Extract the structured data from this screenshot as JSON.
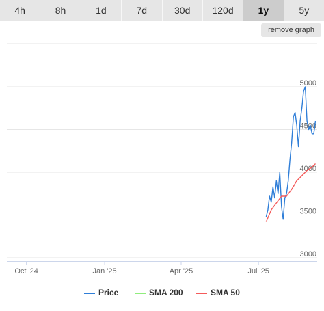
{
  "tabs": [
    {
      "label": "4h",
      "active": false
    },
    {
      "label": "8h",
      "active": false
    },
    {
      "label": "1d",
      "active": false
    },
    {
      "label": "7d",
      "active": false
    },
    {
      "label": "30d",
      "active": false
    },
    {
      "label": "120d",
      "active": false
    },
    {
      "label": "1y",
      "active": true
    },
    {
      "label": "5y",
      "active": false
    }
  ],
  "remove_graph_label": "remove graph",
  "chart_data": {
    "type": "line",
    "x_tick_labels": [
      "Oct '24",
      "Jan '25",
      "Apr '25",
      "Jul '25"
    ],
    "x_ticks": [
      "2024-10-01",
      "2025-01-01",
      "2025-04-01",
      "2025-07-01"
    ],
    "xlim": [
      "2024-09-08",
      "2025-09-08"
    ],
    "y_tick_labels": [
      "3000",
      "3500",
      "4000",
      "4500",
      "5000"
    ],
    "ylim": [
      3000,
      5000
    ],
    "grid": true,
    "legend_position": "bottom",
    "series": [
      {
        "name": "Price",
        "color": "#2f7ed8",
        "x": [
          "2025-07-10",
          "2025-07-12",
          "2025-07-14",
          "2025-07-16",
          "2025-07-18",
          "2025-07-20",
          "2025-07-22",
          "2025-07-24",
          "2025-07-26",
          "2025-07-28",
          "2025-07-30",
          "2025-08-01",
          "2025-08-03",
          "2025-08-05",
          "2025-08-07",
          "2025-08-09",
          "2025-08-11",
          "2025-08-13",
          "2025-08-15",
          "2025-08-17",
          "2025-08-19",
          "2025-08-21",
          "2025-08-23",
          "2025-08-25",
          "2025-08-27",
          "2025-08-29",
          "2025-08-31",
          "2025-09-02",
          "2025-09-04",
          "2025-09-06"
        ],
        "values": [
          3480,
          3560,
          3720,
          3650,
          3830,
          3700,
          3900,
          3750,
          4000,
          3600,
          3450,
          3700,
          3750,
          3900,
          4150,
          4350,
          4650,
          4700,
          4550,
          4300,
          4600,
          4750,
          4950,
          5000,
          4600,
          4500,
          4550,
          4450,
          4450,
          4600
        ]
      },
      {
        "name": "SMA 200",
        "color": "#90ed7d",
        "x": [],
        "values": []
      },
      {
        "name": "SMA 50",
        "color": "#f45b5b",
        "x": [
          "2025-07-10",
          "2025-07-16",
          "2025-07-22",
          "2025-07-28",
          "2025-08-03",
          "2025-08-09",
          "2025-08-15",
          "2025-08-21",
          "2025-08-27",
          "2025-09-02",
          "2025-09-06"
        ],
        "values": [
          3420,
          3560,
          3640,
          3720,
          3720,
          3800,
          3900,
          3960,
          4020,
          4060,
          4100
        ]
      }
    ]
  }
}
